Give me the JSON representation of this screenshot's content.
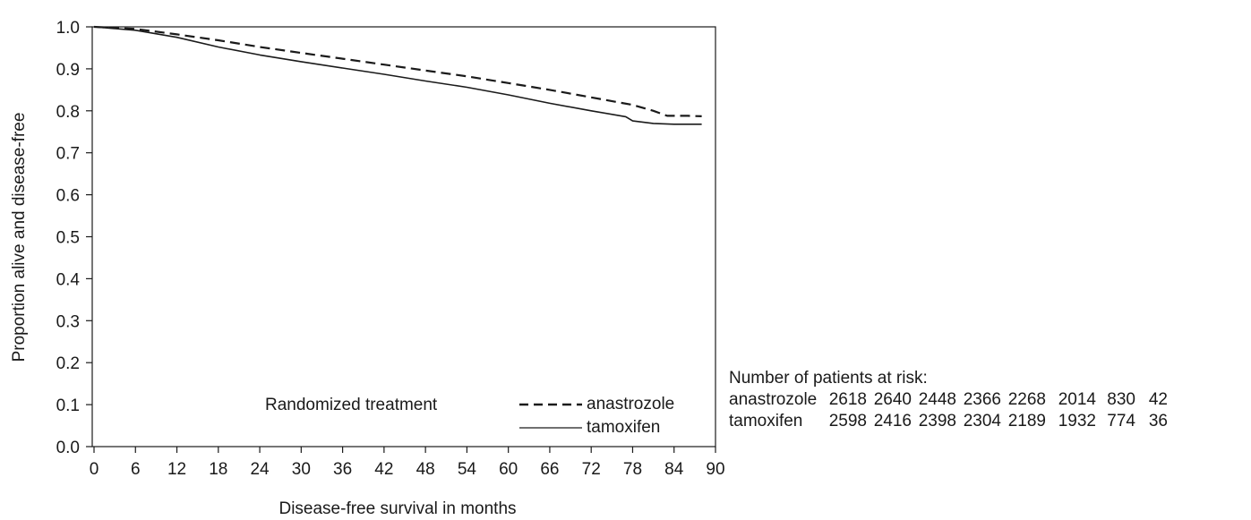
{
  "chart_data": {
    "type": "line",
    "title": "",
    "xlabel": "Disease-free survival in months",
    "ylabel": "Proportion alive and disease-free",
    "xlim": [
      0,
      90
    ],
    "ylim": [
      0.0,
      1.0
    ],
    "x_ticks": [
      "0",
      "6",
      "12",
      "18",
      "24",
      "30",
      "36",
      "42",
      "48",
      "54",
      "60",
      "66",
      "72",
      "78",
      "84",
      "90"
    ],
    "y_ticks": [
      "0.0",
      "0.1",
      "0.2",
      "0.3",
      "0.4",
      "0.5",
      "0.6",
      "0.7",
      "0.8",
      "0.9",
      "1.0"
    ],
    "legend_title": "Randomized treatment",
    "legend_position": "bottom-right",
    "series": [
      {
        "name": "anastrozole",
        "style": "dashed",
        "color": "#1a1a1a",
        "points": [
          [
            0,
            1.0
          ],
          [
            6,
            0.995
          ],
          [
            12,
            0.982
          ],
          [
            18,
            0.968
          ],
          [
            24,
            0.952
          ],
          [
            30,
            0.938
          ],
          [
            36,
            0.924
          ],
          [
            42,
            0.91
          ],
          [
            48,
            0.896
          ],
          [
            54,
            0.882
          ],
          [
            60,
            0.866
          ],
          [
            66,
            0.85
          ],
          [
            72,
            0.832
          ],
          [
            78,
            0.814
          ],
          [
            81,
            0.8
          ],
          [
            83,
            0.788
          ],
          [
            86,
            0.788
          ],
          [
            88,
            0.787
          ]
        ]
      },
      {
        "name": "tamoxifen",
        "style": "solid",
        "color": "#1a1a1a",
        "points": [
          [
            0,
            1.0
          ],
          [
            6,
            0.992
          ],
          [
            12,
            0.975
          ],
          [
            18,
            0.952
          ],
          [
            24,
            0.933
          ],
          [
            30,
            0.917
          ],
          [
            36,
            0.902
          ],
          [
            42,
            0.887
          ],
          [
            48,
            0.871
          ],
          [
            54,
            0.856
          ],
          [
            60,
            0.838
          ],
          [
            66,
            0.818
          ],
          [
            72,
            0.8
          ],
          [
            77,
            0.786
          ],
          [
            78,
            0.776
          ],
          [
            81,
            0.77
          ],
          [
            84,
            0.768
          ],
          [
            88,
            0.768
          ]
        ]
      }
    ]
  },
  "risk_table": {
    "title": "Number of patients at risk:",
    "rows": [
      {
        "label": "anastrozole",
        "values": [
          "2618",
          "2640",
          "2448",
          "2366",
          "2268",
          "2014",
          "830",
          "42"
        ]
      },
      {
        "label": "tamoxifen",
        "values": [
          "2598",
          "2416",
          "2398",
          "2304",
          "2189",
          "1932",
          "774",
          "36"
        ]
      }
    ]
  }
}
